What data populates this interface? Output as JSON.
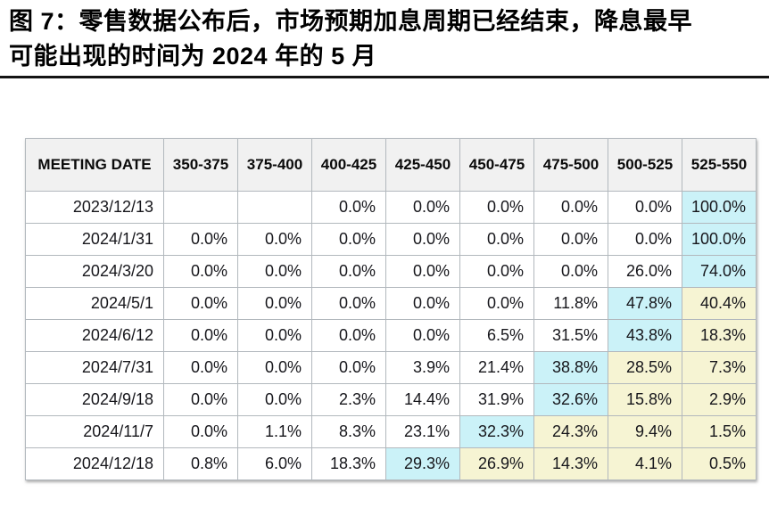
{
  "figure": {
    "title_line1": "图 7：零售数据公布后，市场预期加息周期已经结束，降息最早",
    "title_line2": "可能出现的时间为 2024 年的 5 月"
  },
  "colors": {
    "highlight_cyan": "#cbf2f8",
    "highlight_yellow": "#f6f4d3",
    "header_background": "#f1f1f1",
    "grid_border": "#b2b8bd",
    "title_rule": "#141414"
  },
  "table": {
    "headers": [
      "MEETING DATE",
      "350-375",
      "375-400",
      "400-425",
      "425-450",
      "450-475",
      "475-500",
      "500-525",
      "525-550"
    ],
    "rows": [
      {
        "date": "2023/12/13",
        "values": [
          "",
          "",
          "0.0%",
          "0.0%",
          "0.0%",
          "0.0%",
          "0.0%",
          "100.0%"
        ],
        "highlights": [
          "",
          "",
          "",
          "",
          "",
          "",
          "",
          "cyan"
        ]
      },
      {
        "date": "2024/1/31",
        "values": [
          "0.0%",
          "0.0%",
          "0.0%",
          "0.0%",
          "0.0%",
          "0.0%",
          "0.0%",
          "100.0%"
        ],
        "highlights": [
          "",
          "",
          "",
          "",
          "",
          "",
          "",
          "cyan"
        ]
      },
      {
        "date": "2024/3/20",
        "values": [
          "0.0%",
          "0.0%",
          "0.0%",
          "0.0%",
          "0.0%",
          "0.0%",
          "26.0%",
          "74.0%"
        ],
        "highlights": [
          "",
          "",
          "",
          "",
          "",
          "",
          "",
          "cyan"
        ]
      },
      {
        "date": "2024/5/1",
        "values": [
          "0.0%",
          "0.0%",
          "0.0%",
          "0.0%",
          "0.0%",
          "11.8%",
          "47.8%",
          "40.4%"
        ],
        "highlights": [
          "",
          "",
          "",
          "",
          "",
          "",
          "cyan",
          "yellow"
        ]
      },
      {
        "date": "2024/6/12",
        "values": [
          "0.0%",
          "0.0%",
          "0.0%",
          "0.0%",
          "6.5%",
          "31.5%",
          "43.8%",
          "18.3%"
        ],
        "highlights": [
          "",
          "",
          "",
          "",
          "",
          "",
          "cyan",
          "yellow"
        ]
      },
      {
        "date": "2024/7/31",
        "values": [
          "0.0%",
          "0.0%",
          "0.0%",
          "3.9%",
          "21.4%",
          "38.8%",
          "28.5%",
          "7.3%"
        ],
        "highlights": [
          "",
          "",
          "",
          "",
          "",
          "cyan",
          "yellow",
          "yellow"
        ]
      },
      {
        "date": "2024/9/18",
        "values": [
          "0.0%",
          "0.0%",
          "2.3%",
          "14.4%",
          "31.9%",
          "32.6%",
          "15.8%",
          "2.9%"
        ],
        "highlights": [
          "",
          "",
          "",
          "",
          "",
          "cyan",
          "yellow",
          "yellow"
        ]
      },
      {
        "date": "2024/11/7",
        "values": [
          "0.0%",
          "1.1%",
          "8.3%",
          "23.1%",
          "32.3%",
          "24.3%",
          "9.4%",
          "1.5%"
        ],
        "highlights": [
          "",
          "",
          "",
          "",
          "cyan",
          "yellow",
          "yellow",
          "yellow"
        ]
      },
      {
        "date": "2024/12/18",
        "values": [
          "0.8%",
          "6.0%",
          "18.3%",
          "29.3%",
          "26.9%",
          "14.3%",
          "4.1%",
          "0.5%"
        ],
        "highlights": [
          "",
          "",
          "",
          "cyan",
          "yellow",
          "yellow",
          "yellow",
          "yellow"
        ]
      }
    ]
  },
  "chart_data": {
    "type": "table",
    "title": "图 7：零售数据公布后，市场预期加息周期已经结束，降息最早可能出现的时间为 2024 年的 5 月",
    "columns": [
      "MEETING DATE",
      "350-375",
      "375-400",
      "400-425",
      "425-450",
      "450-475",
      "475-500",
      "500-525",
      "525-550"
    ],
    "rows": [
      [
        "2023/12/13",
        "",
        "",
        "0.0%",
        "0.0%",
        "0.0%",
        "0.0%",
        "0.0%",
        "100.0%"
      ],
      [
        "2024/1/31",
        "0.0%",
        "0.0%",
        "0.0%",
        "0.0%",
        "0.0%",
        "0.0%",
        "0.0%",
        "100.0%"
      ],
      [
        "2024/3/20",
        "0.0%",
        "0.0%",
        "0.0%",
        "0.0%",
        "0.0%",
        "0.0%",
        "26.0%",
        "74.0%"
      ],
      [
        "2024/5/1",
        "0.0%",
        "0.0%",
        "0.0%",
        "0.0%",
        "0.0%",
        "11.8%",
        "47.8%",
        "40.4%"
      ],
      [
        "2024/6/12",
        "0.0%",
        "0.0%",
        "0.0%",
        "0.0%",
        "6.5%",
        "31.5%",
        "43.8%",
        "18.3%"
      ],
      [
        "2024/7/31",
        "0.0%",
        "0.0%",
        "0.0%",
        "3.9%",
        "21.4%",
        "38.8%",
        "28.5%",
        "7.3%"
      ],
      [
        "2024/9/18",
        "0.0%",
        "0.0%",
        "2.3%",
        "14.4%",
        "31.9%",
        "32.6%",
        "15.8%",
        "2.9%"
      ],
      [
        "2024/11/7",
        "0.0%",
        "1.1%",
        "8.3%",
        "23.1%",
        "32.3%",
        "24.3%",
        "9.4%",
        "1.5%"
      ],
      [
        "2024/12/18",
        "0.8%",
        "6.0%",
        "18.3%",
        "29.3%",
        "26.9%",
        "14.3%",
        "4.1%",
        "0.5%"
      ]
    ]
  }
}
